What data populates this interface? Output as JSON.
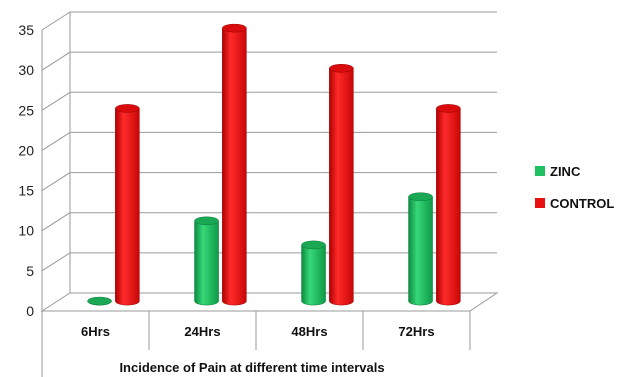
{
  "chart_data": {
    "type": "bar",
    "categories": [
      "6Hrs",
      "24Hrs",
      "48Hrs",
      "72Hrs"
    ],
    "series": [
      {
        "name": "ZINC",
        "values": [
          0,
          10,
          7,
          13
        ],
        "color": "#1fc060"
      },
      {
        "name": "CONTROL",
        "values": [
          24,
          34,
          29,
          24
        ],
        "color": "#e81010"
      }
    ],
    "xlabel": "Incidence of Pain at different time intervals",
    "ylabel": "",
    "ylim": [
      0,
      35
    ],
    "yticks": [
      0,
      5,
      10,
      15,
      20,
      25,
      30,
      35
    ],
    "grid": true,
    "legend": "right",
    "style": "3d-cylinder"
  }
}
